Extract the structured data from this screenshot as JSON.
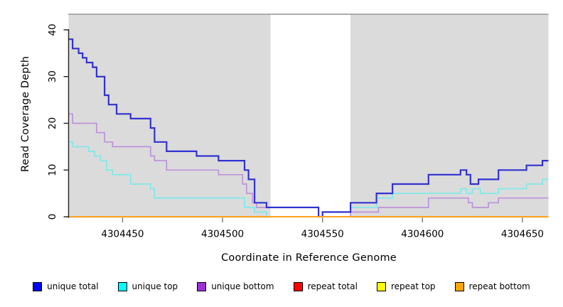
{
  "figure_title": "",
  "chart_data": {
    "type": "line",
    "step": true,
    "title": "",
    "xlabel": "Coordinate in Reference Genome",
    "ylabel": "Read Coverage Depth",
    "xlim": [
      4304423,
      4304663
    ],
    "ylim": [
      0,
      43.3
    ],
    "grid": false,
    "legend_position": "bottom",
    "plot_background": "#DBDBDB",
    "highlight_region": {
      "x0": 4304524,
      "x1": 4304564,
      "color": "#FFFFFF"
    },
    "x_ticks": [
      4304450,
      4304500,
      4304550,
      4304600,
      4304650
    ],
    "y_ticks": [
      0,
      10,
      20,
      30,
      40
    ],
    "series": [
      {
        "name": "unique total",
        "legend_color": "#0000FF",
        "line_color": "#3232D0",
        "line_width": 2.2,
        "points": [
          [
            4304423,
            38
          ],
          [
            4304425,
            36
          ],
          [
            4304428,
            35
          ],
          [
            4304430,
            34
          ],
          [
            4304432,
            33
          ],
          [
            4304435,
            32
          ],
          [
            4304437,
            30
          ],
          [
            4304441,
            26
          ],
          [
            4304443,
            24
          ],
          [
            4304447,
            22
          ],
          [
            4304454,
            21
          ],
          [
            4304464,
            19
          ],
          [
            4304466,
            16
          ],
          [
            4304472,
            14
          ],
          [
            4304487,
            13
          ],
          [
            4304498,
            12
          ],
          [
            4304511,
            10
          ],
          [
            4304513,
            8
          ],
          [
            4304516,
            3
          ],
          [
            4304522,
            2
          ],
          [
            4304548,
            0
          ],
          [
            4304550,
            1
          ],
          [
            4304564,
            3
          ],
          [
            4304577,
            5
          ],
          [
            4304585,
            7
          ],
          [
            4304603,
            9
          ],
          [
            4304619,
            10
          ],
          [
            4304622,
            9
          ],
          [
            4304624,
            7
          ],
          [
            4304628,
            8
          ],
          [
            4304638,
            10
          ],
          [
            4304652,
            11
          ],
          [
            4304660,
            12
          ]
        ]
      },
      {
        "name": "unique top",
        "legend_color": "#00FFFF",
        "line_color": "#82E9E9",
        "line_width": 1.8,
        "points": [
          [
            4304423,
            16
          ],
          [
            4304425,
            15
          ],
          [
            4304433,
            14
          ],
          [
            4304436,
            13
          ],
          [
            4304439,
            12
          ],
          [
            4304442,
            10
          ],
          [
            4304445,
            9
          ],
          [
            4304454,
            7
          ],
          [
            4304464,
            6
          ],
          [
            4304466,
            4
          ],
          [
            4304511,
            2
          ],
          [
            4304516,
            1
          ],
          [
            4304522,
            0
          ],
          [
            4304550,
            1
          ],
          [
            4304564,
            2
          ],
          [
            4304577,
            4
          ],
          [
            4304585,
            5
          ],
          [
            4304619,
            6
          ],
          [
            4304622,
            5
          ],
          [
            4304625,
            6
          ],
          [
            4304629,
            5
          ],
          [
            4304638,
            6
          ],
          [
            4304652,
            7
          ],
          [
            4304660,
            8
          ]
        ]
      },
      {
        "name": "unique bottom",
        "legend_color": "#9B30D8",
        "line_color": "#BD93DC",
        "line_width": 1.7,
        "points": [
          [
            4304423,
            22
          ],
          [
            4304425,
            20
          ],
          [
            4304437,
            18
          ],
          [
            4304441,
            16
          ],
          [
            4304445,
            15
          ],
          [
            4304464,
            13
          ],
          [
            4304466,
            12
          ],
          [
            4304472,
            10
          ],
          [
            4304498,
            9
          ],
          [
            4304510,
            7
          ],
          [
            4304512,
            5
          ],
          [
            4304515,
            3
          ],
          [
            4304517,
            2
          ],
          [
            4304548,
            0
          ],
          [
            4304564,
            1
          ],
          [
            4304578,
            2
          ],
          [
            4304603,
            4
          ],
          [
            4304623,
            3
          ],
          [
            4304625,
            2
          ],
          [
            4304633,
            3
          ],
          [
            4304638,
            4
          ]
        ]
      },
      {
        "name": "repeat total",
        "legend_color": "#FF0000",
        "line_color": "#E02020",
        "line_width": 1.5,
        "points": [
          [
            4304423,
            0
          ]
        ]
      },
      {
        "name": "repeat top",
        "legend_color": "#FFFF00",
        "line_color": "#F5F500",
        "line_width": 1.5,
        "points": [
          [
            4304423,
            0
          ]
        ]
      },
      {
        "name": "repeat bottom",
        "legend_color": "#FFA500",
        "line_color": "#FFA21E",
        "line_width": 2,
        "points": [
          [
            4304423,
            0
          ]
        ]
      }
    ]
  }
}
